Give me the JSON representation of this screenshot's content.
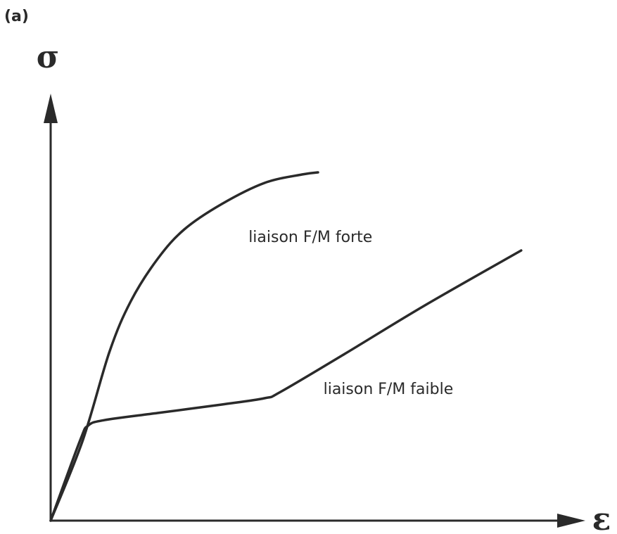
{
  "panel_label": "(a)",
  "chart_data": {
    "type": "line",
    "title": "",
    "xlabel": "ε",
    "ylabel": "σ",
    "ticks": "none",
    "grid": false,
    "legend": "none",
    "xlim": [
      0,
      100
    ],
    "ylim": [
      0,
      100
    ],
    "series": [
      {
        "label": "liaison F/M forte",
        "points": [
          [
            0,
            0
          ],
          [
            6,
            19
          ],
          [
            11,
            40
          ],
          [
            15,
            52
          ],
          [
            20,
            62
          ],
          [
            25,
            69
          ],
          [
            32,
            75
          ],
          [
            40,
            80
          ],
          [
            47,
            82
          ],
          [
            50,
            82.5
          ]
        ],
        "color": "#2a2a2a"
      },
      {
        "label": "liaison F/M faible",
        "points": [
          [
            0,
            0
          ],
          [
            5.5,
            19
          ],
          [
            7,
            22.5
          ],
          [
            10,
            23.8
          ],
          [
            20,
            25.5
          ],
          [
            32,
            27.5
          ],
          [
            40,
            29
          ],
          [
            43,
            30.5
          ],
          [
            55,
            39.5
          ],
          [
            70,
            51
          ],
          [
            88,
            64
          ]
        ],
        "color": "#2a2a2a"
      }
    ],
    "annotations": [
      {
        "text": "liaison F/M forte",
        "x": 37,
        "y": 66
      },
      {
        "text": "liaison F/M faible",
        "x": 51,
        "y": 30
      }
    ]
  }
}
